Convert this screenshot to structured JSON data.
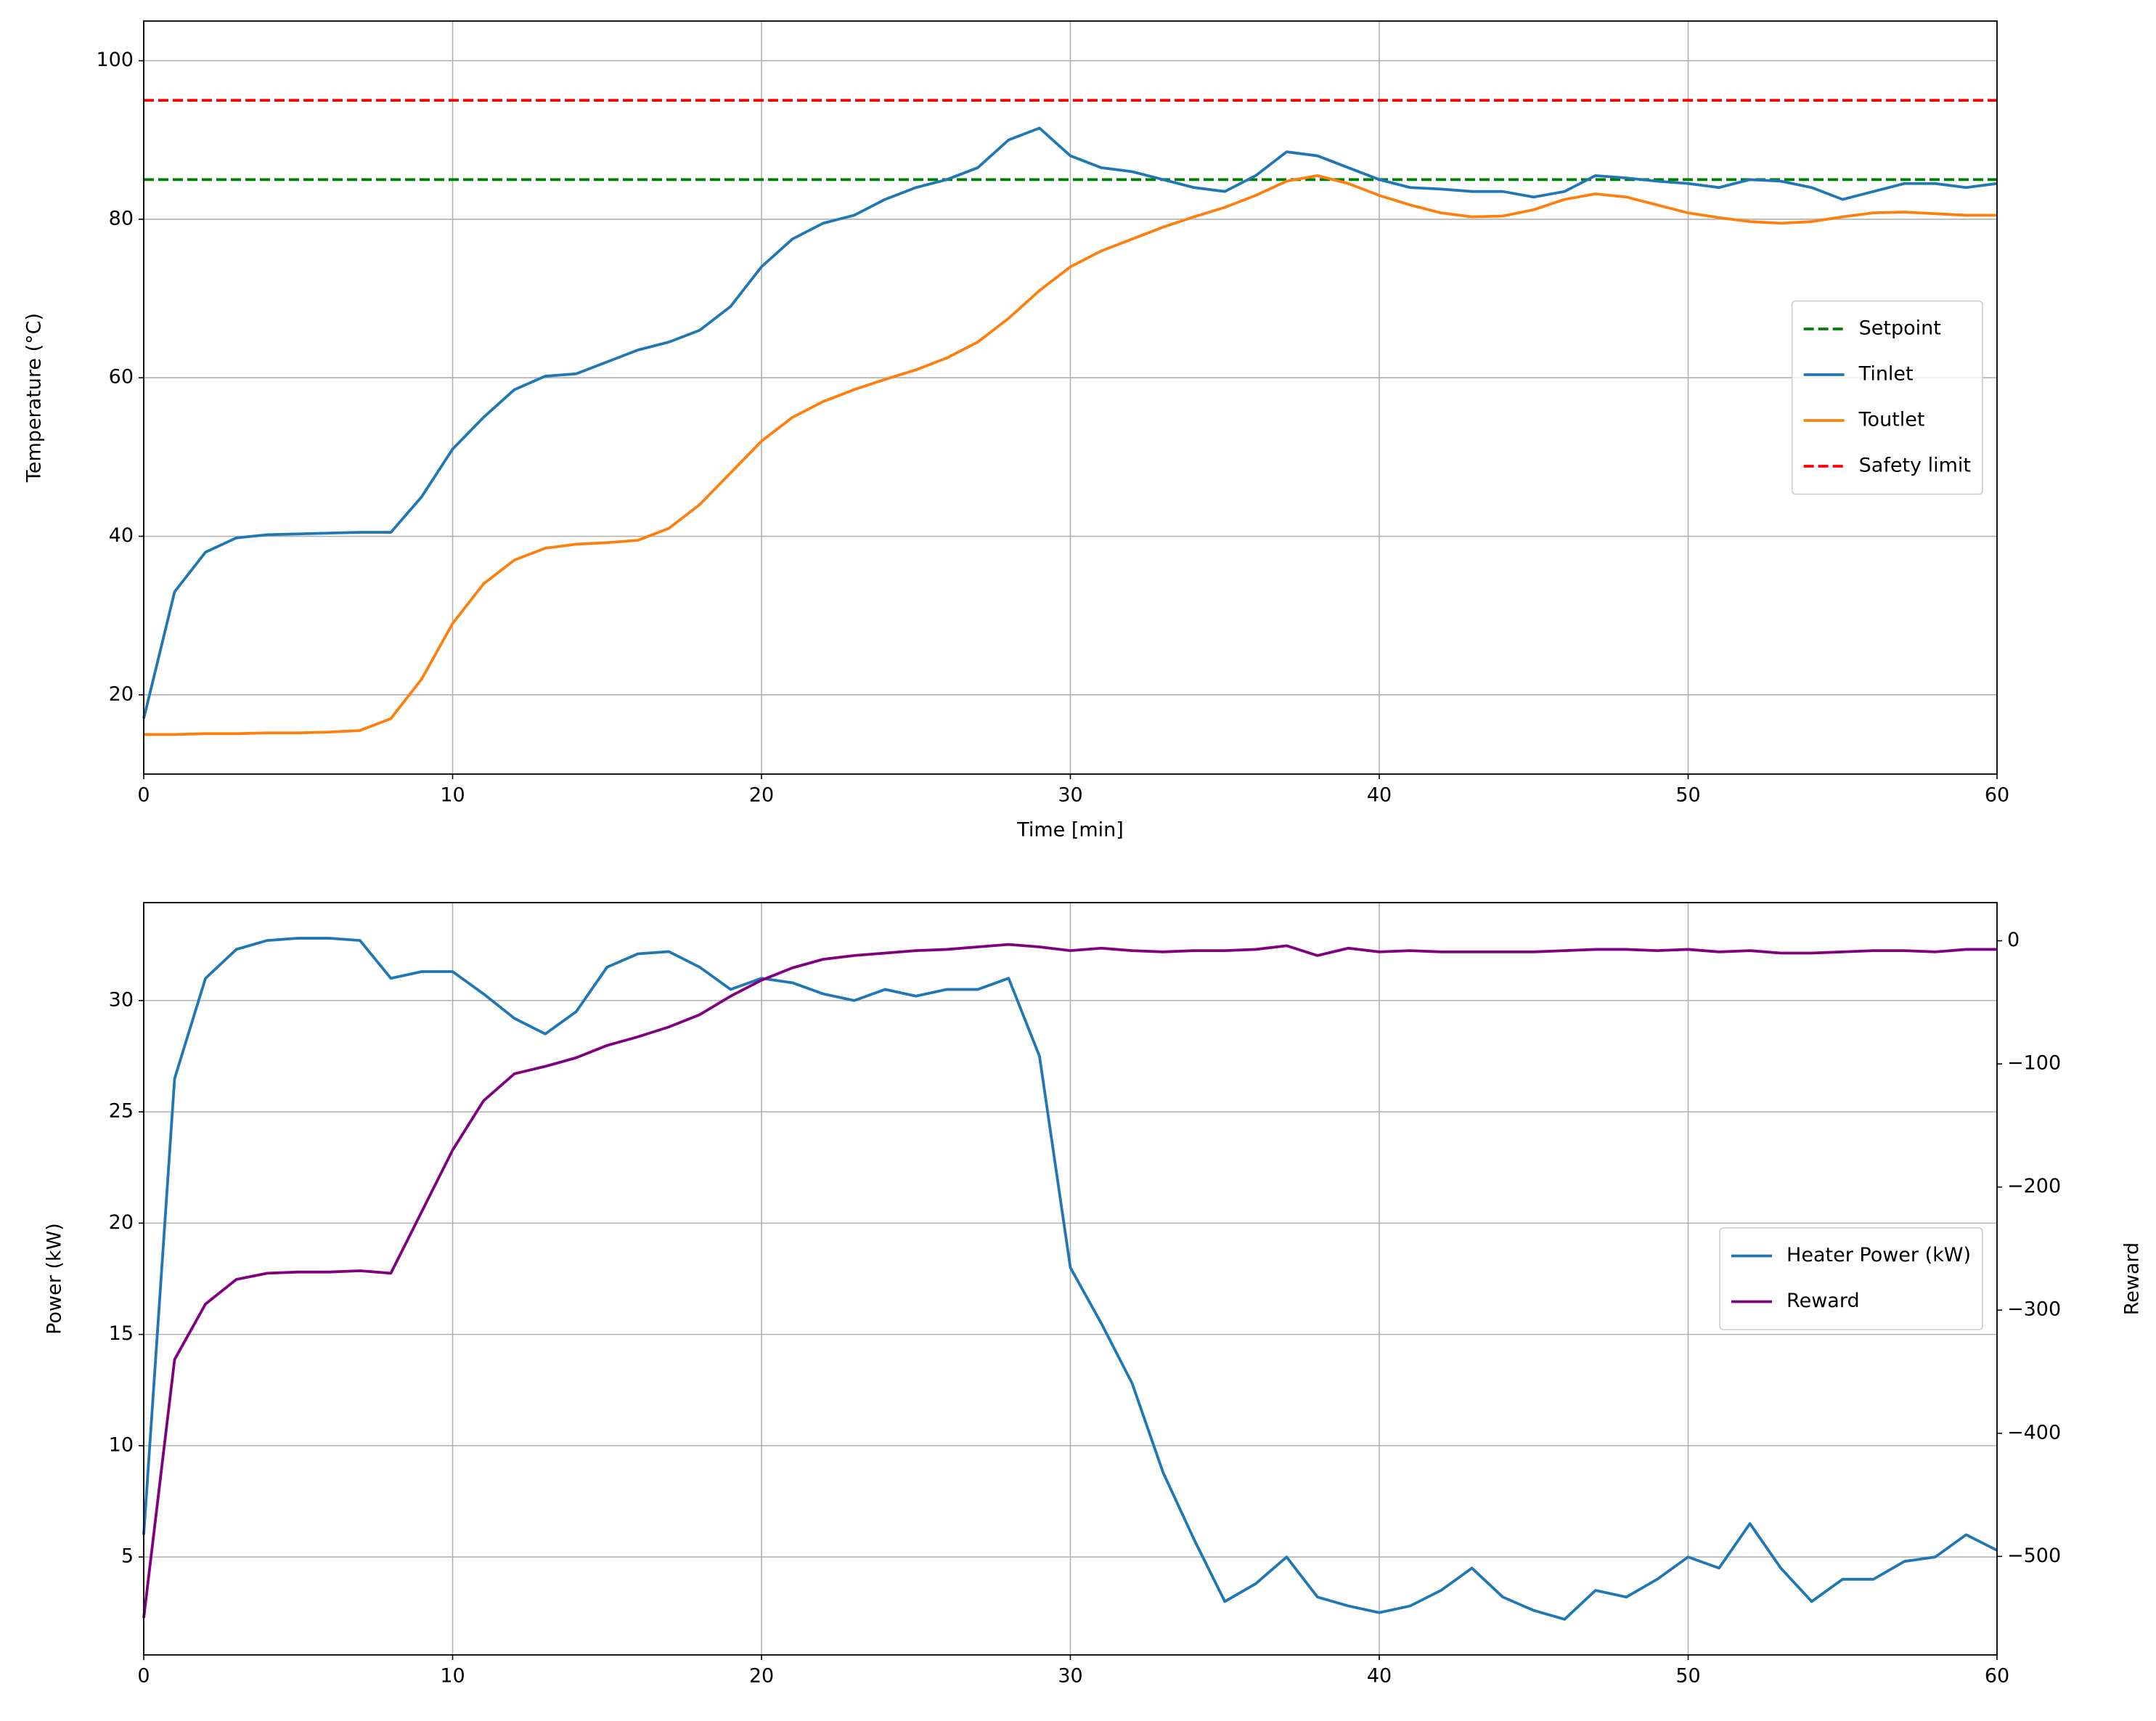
{
  "chart_data": [
    {
      "type": "line",
      "xlabel": "Time [min]",
      "ylabel": "Temperature (°C)",
      "x": [
        0,
        1,
        2,
        3,
        4,
        5,
        6,
        7,
        8,
        9,
        10,
        11,
        12,
        13,
        14,
        15,
        16,
        17,
        18,
        19,
        20,
        21,
        22,
        23,
        24,
        25,
        26,
        27,
        28,
        29,
        30,
        31,
        32,
        33,
        34,
        35,
        36,
        37,
        38,
        39,
        40,
        41,
        42,
        43,
        44,
        45,
        46,
        47,
        48,
        49,
        50,
        51,
        52,
        53,
        54,
        55,
        56,
        57,
        58,
        59,
        60
      ],
      "xlim": [
        0,
        60
      ],
      "xticks": [
        0,
        10,
        20,
        30,
        40,
        50,
        60
      ],
      "ylim": [
        10,
        105
      ],
      "yticks": [
        20,
        40,
        60,
        80,
        100
      ],
      "grid": true,
      "legend": "center right",
      "series": [
        {
          "name": "Setpoint",
          "color": "#008000",
          "dashed": true,
          "x": [
            0,
            60
          ],
          "values": [
            85,
            85
          ]
        },
        {
          "name": "Tinlet",
          "color": "#1f77b4",
          "values": [
            17,
            33,
            38,
            39.8,
            40.2,
            40.3,
            40.4,
            40.5,
            40.5,
            45,
            51,
            55,
            58.5,
            60.2,
            60.5,
            62,
            63.5,
            64.5,
            66,
            69,
            74,
            77.5,
            79.5,
            80.5,
            82.5,
            84,
            85,
            86.5,
            90,
            91.5,
            88,
            86.5,
            86,
            85,
            84,
            83.5,
            85.5,
            88.5,
            88,
            86.5,
            85,
            84,
            83.8,
            83.5,
            83.5,
            82.8,
            83.5,
            85.5,
            85.2,
            84.8,
            84.5,
            84,
            85,
            84.8,
            84,
            82.5,
            83.5,
            84.5,
            84.5,
            84,
            84.5
          ]
        },
        {
          "name": "Toutlet",
          "color": "#ff7f0e",
          "values": [
            15,
            15,
            15.1,
            15.1,
            15.2,
            15.2,
            15.3,
            15.5,
            17,
            22,
            29,
            34,
            37,
            38.5,
            39,
            39.2,
            39.5,
            41,
            44,
            48,
            52,
            55,
            57,
            58.5,
            59.8,
            61,
            62.5,
            64.5,
            67.5,
            71,
            74,
            76,
            77.5,
            79,
            80.3,
            81.5,
            83,
            84.8,
            85.5,
            84.5,
            83,
            81.8,
            80.8,
            80.3,
            80.4,
            81.2,
            82.5,
            83.2,
            82.8,
            81.8,
            80.8,
            80.2,
            79.7,
            79.5,
            79.7,
            80.3,
            80.8,
            80.9,
            80.7,
            80.5,
            80.5
          ]
        },
        {
          "name": "Safety limit",
          "color": "#ff0000",
          "dashed": true,
          "x": [
            0,
            60
          ],
          "values": [
            95,
            95
          ]
        }
      ]
    },
    {
      "type": "line",
      "ylabel": "Power (kW)",
      "y2label": "Reward",
      "x": [
        0,
        1,
        2,
        3,
        4,
        5,
        6,
        7,
        8,
        9,
        10,
        11,
        12,
        13,
        14,
        15,
        16,
        17,
        18,
        19,
        20,
        21,
        22,
        23,
        24,
        25,
        26,
        27,
        28,
        29,
        30,
        31,
        32,
        33,
        34,
        35,
        36,
        37,
        38,
        39,
        40,
        41,
        42,
        43,
        44,
        45,
        46,
        47,
        48,
        49,
        50,
        51,
        52,
        53,
        54,
        55,
        56,
        57,
        58,
        59,
        60
      ],
      "xlim": [
        0,
        60
      ],
      "xticks": [
        0,
        10,
        20,
        30,
        40,
        50,
        60
      ],
      "ylim": [
        0.6,
        34.4
      ],
      "yticks": [
        5,
        10,
        15,
        20,
        25,
        30
      ],
      "y2lim": [
        -580,
        31
      ],
      "y2ticks": [
        {
          "value": -500,
          "label": "−500"
        },
        {
          "value": -400,
          "label": "−400"
        },
        {
          "value": -300,
          "label": "−300"
        },
        {
          "value": -200,
          "label": "−200"
        },
        {
          "value": -100,
          "label": "−100"
        },
        0
      ],
      "grid": true,
      "legend": "center right",
      "series": [
        {
          "name": "Heater Power (kW)",
          "color": "#1f77b4",
          "values": [
            6,
            26.5,
            31,
            32.3,
            32.7,
            32.8,
            32.8,
            32.7,
            31,
            31.3,
            31.3,
            30.3,
            29.2,
            28.5,
            29.5,
            31.5,
            32.1,
            32.2,
            31.5,
            30.5,
            31,
            30.8,
            30.3,
            30,
            30.5,
            30.2,
            30.5,
            30.5,
            31,
            27.5,
            18,
            15.5,
            12.8,
            8.8,
            5.8,
            3,
            3.8,
            5,
            3.2,
            2.8,
            2.5,
            2.8,
            3.5,
            4.5,
            3.2,
            2.6,
            2.2,
            3.5,
            3.2,
            4,
            5,
            4.5,
            6.5,
            4.5,
            3,
            4,
            4,
            4.8,
            5,
            6,
            5.3
          ]
        },
        {
          "name": "Reward",
          "color": "#800080",
          "axis": "y2",
          "values": [
            -550,
            -340,
            -295,
            -275,
            -270,
            -269,
            -269,
            -268,
            -270,
            -220,
            -170,
            -130,
            -108,
            -102,
            -95,
            -85,
            -78,
            -70,
            -60,
            -45,
            -32,
            -22,
            -15,
            -12,
            -10,
            -8,
            -7,
            -5,
            -3,
            -5,
            -8,
            -6,
            -8,
            -9,
            -8,
            -8,
            -7,
            -4,
            -12,
            -6,
            -9,
            -8,
            -9,
            -9,
            -9,
            -9,
            -8,
            -7,
            -7,
            -8,
            -7,
            -9,
            -8,
            -10,
            -10,
            -9,
            -8,
            -8,
            -9,
            -7,
            -7
          ]
        }
      ]
    }
  ]
}
